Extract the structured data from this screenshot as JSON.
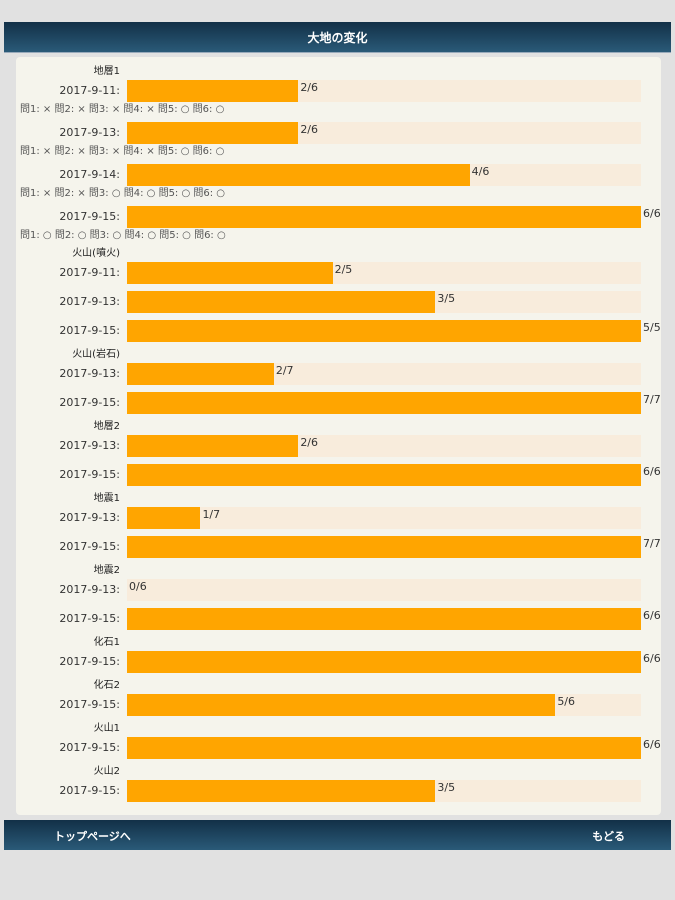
{
  "header": {
    "title": "大地の変化"
  },
  "footer": {
    "top_page": "トップページへ",
    "back": "もどる"
  },
  "colors": {
    "fill": "#ffa500",
    "track": "#f8ecdc",
    "header": "#1a3d56"
  },
  "rows": [
    {
      "group": "地層1",
      "date": "2017-9-11:",
      "value": "2/6",
      "fraction": 0.3333,
      "quiz": "問1: × 問2: × 問3: × 問4: × 問5: ○ 問6: ○"
    },
    {
      "group": "",
      "date": "2017-9-13:",
      "value": "2/6",
      "fraction": 0.3333,
      "quiz": "問1: × 問2: × 問3: × 問4: × 問5: ○ 問6: ○"
    },
    {
      "group": "",
      "date": "2017-9-14:",
      "value": "4/6",
      "fraction": 0.6667,
      "quiz": "問1: × 問2: × 問3: ○ 問4: ○ 問5: ○ 問6: ○"
    },
    {
      "group": "",
      "date": "2017-9-15:",
      "value": "6/6",
      "fraction": 1,
      "quiz": "問1: ○ 問2: ○ 問3: ○ 問4: ○ 問5: ○ 問6: ○"
    },
    {
      "group": "火山(噴火)",
      "date": "2017-9-11:",
      "value": "2/5",
      "fraction": 0.4
    },
    {
      "group": "",
      "date": "2017-9-13:",
      "value": "3/5",
      "fraction": 0.6
    },
    {
      "group": "",
      "date": "2017-9-15:",
      "value": "5/5",
      "fraction": 1
    },
    {
      "group": "火山(岩石)",
      "date": "2017-9-13:",
      "value": "2/7",
      "fraction": 0.2857
    },
    {
      "group": "",
      "date": "2017-9-15:",
      "value": "7/7",
      "fraction": 1
    },
    {
      "group": "地層2",
      "date": "2017-9-13:",
      "value": "2/6",
      "fraction": 0.3333
    },
    {
      "group": "",
      "date": "2017-9-15:",
      "value": "6/6",
      "fraction": 1
    },
    {
      "group": "地震1",
      "date": "2017-9-13:",
      "value": "1/7",
      "fraction": 0.1429
    },
    {
      "group": "",
      "date": "2017-9-15:",
      "value": "7/7",
      "fraction": 1
    },
    {
      "group": "地震2",
      "date": "2017-9-13:",
      "value": "0/6",
      "fraction": 0
    },
    {
      "group": "",
      "date": "2017-9-15:",
      "value": "6/6",
      "fraction": 1
    },
    {
      "group": "化石1",
      "date": "2017-9-15:",
      "value": "6/6",
      "fraction": 1
    },
    {
      "group": "化石2",
      "date": "2017-9-15:",
      "value": "5/6",
      "fraction": 0.8333
    },
    {
      "group": "火山1",
      "date": "2017-9-15:",
      "value": "6/6",
      "fraction": 1
    },
    {
      "group": "火山2",
      "date": "2017-9-15:",
      "value": "3/5",
      "fraction": 0.6
    }
  ]
}
